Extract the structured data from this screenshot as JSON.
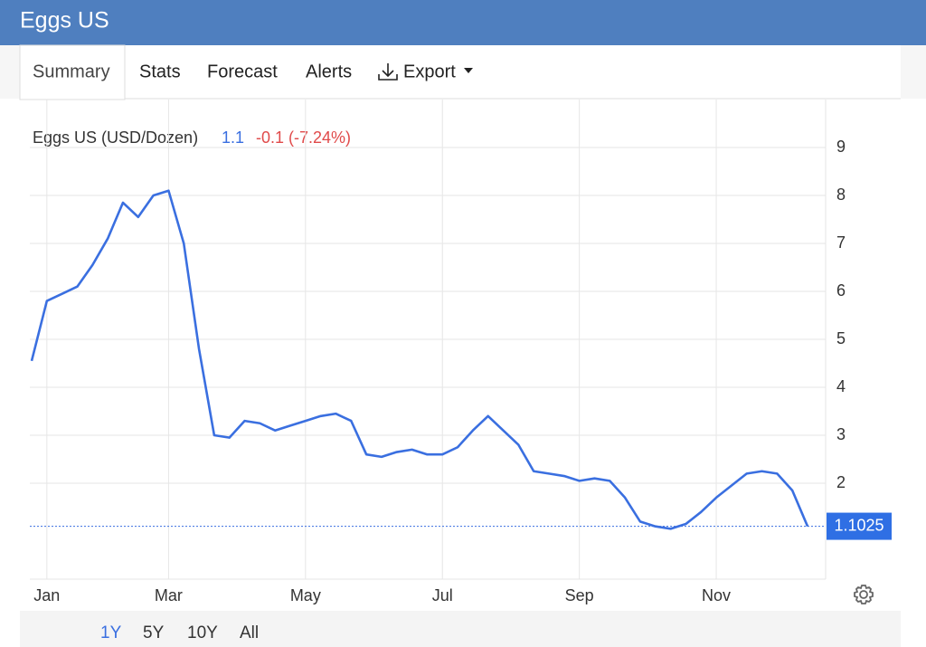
{
  "header": {
    "title": "Eggs US"
  },
  "tabs": [
    "Summary",
    "Stats",
    "Forecast",
    "Alerts",
    "Export"
  ],
  "ranges": [
    "1Y",
    "5Y",
    "10Y",
    "All"
  ],
  "chart_data": {
    "type": "line",
    "quote": {
      "price": "1.1",
      "change": "-0.1 (-7.24%)"
    },
    "categories": [
      null,
      "Jan",
      null,
      null,
      null,
      null,
      null,
      null,
      null,
      "Mar",
      null,
      null,
      null,
      null,
      null,
      null,
      null,
      null,
      "May",
      null,
      null,
      null,
      null,
      null,
      null,
      null,
      null,
      "Jul",
      null,
      null,
      null,
      null,
      null,
      null,
      null,
      null,
      "Sep",
      null,
      null,
      null,
      null,
      null,
      null,
      null,
      null,
      "Nov",
      null,
      null,
      null,
      null,
      null,
      null
    ],
    "series": [
      {
        "name": "Eggs US (USD/Dozen)",
        "color": "#3a6fe0",
        "values": [
          4.55,
          5.8,
          5.95,
          6.1,
          6.55,
          7.1,
          7.85,
          7.55,
          8.0,
          8.1,
          7.0,
          4.8,
          3.0,
          2.95,
          3.3,
          3.25,
          3.1,
          3.2,
          3.3,
          3.4,
          3.45,
          3.3,
          2.6,
          2.55,
          2.65,
          2.7,
          2.6,
          2.6,
          2.75,
          3.1,
          3.4,
          3.1,
          2.8,
          2.25,
          2.2,
          2.15,
          2.05,
          2.1,
          2.05,
          1.7,
          1.2,
          1.1,
          1.05,
          1.15,
          1.4,
          1.7,
          1.95,
          2.2,
          2.25,
          2.2,
          1.85,
          1.1025
        ]
      }
    ],
    "ylim": [
      0,
      10
    ],
    "yticks": [
      2,
      3,
      4,
      5,
      6,
      7,
      8,
      9
    ],
    "grid": true
  }
}
